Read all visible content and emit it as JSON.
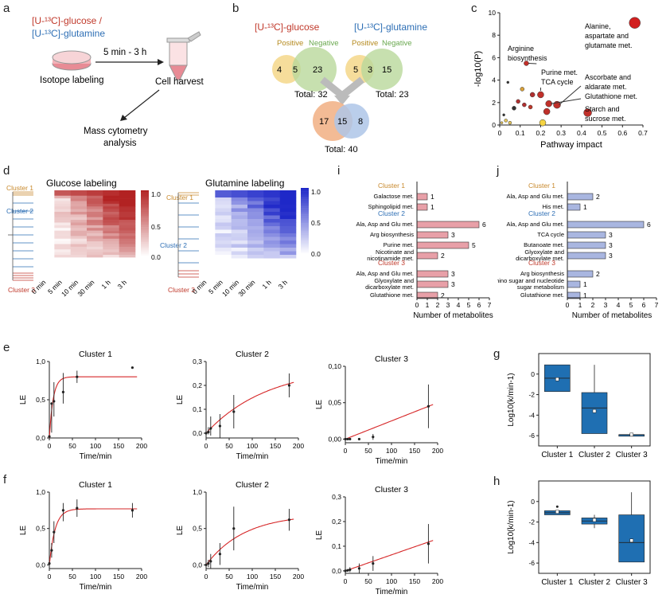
{
  "panel_labels": {
    "a": "a",
    "b": "b",
    "c": "c",
    "d": "d",
    "e": "e",
    "f": "f",
    "g": "g",
    "h": "h",
    "i": "i",
    "j": "j"
  },
  "colors": {
    "red": "#c0392b",
    "blue": "#2e6fb5",
    "orange": "#c8892c",
    "dark_red": "#b22222",
    "bar_red": "#e8a0a8",
    "bar_blue": "#a9b6e0",
    "box_blue": "#1f6fb2",
    "fit_red": "#d62728",
    "yellow": "#f5d76e",
    "green": "#b9d89b"
  },
  "panel_a": {
    "glucose_label": "[U-¹³C]-glucose /",
    "glutamine_label": "[U-¹³C]-glutamine",
    "time_label": "5 min - 3 h",
    "isotope_label": "Isotope labeling",
    "harvest_label": "Cell harvest",
    "cytometry_line1": "Mass cytometry",
    "cytometry_line2": "analysis"
  },
  "panel_b": {
    "glucose_title": "[U-¹³C]-glucose",
    "glutamine_title": "[U-¹³C]-glutamine",
    "positive": "Positive",
    "negative": "Negative",
    "glc_pos_only": "4",
    "glc_both": "5",
    "glc_neg_only": "23",
    "gln_pos_only": "5",
    "gln_both": "3",
    "gln_neg_only": "15",
    "total_glc": "Total: 32",
    "total_gln": "Total: 23",
    "union_glc_only": "17",
    "union_both": "15",
    "union_gln_only": "8",
    "total_union": "Total: 40"
  },
  "panel_d": {
    "glucose_title": "Glucose labeling",
    "glutamine_title": "Glutamine labeling",
    "cluster1": "Cluster 1",
    "cluster2": "Cluster 2",
    "cluster3": "Cluster 3",
    "time_ticks": [
      "0 min",
      "5 min",
      "10 min",
      "30 min",
      "1 h",
      "3 h"
    ],
    "colorbar_ticks": [
      "1.0",
      "0.5",
      "0.0"
    ]
  },
  "chart_data": [
    {
      "id": "c",
      "type": "scatter",
      "xlabel": "Pathway impact",
      "ylabel": "-log10(P)",
      "xlim": [
        0,
        0.7
      ],
      "ylim": [
        0,
        10
      ],
      "xticks": [
        "0",
        "0.1",
        "0.2",
        "0.3",
        "0.4",
        "0.5",
        "0.6",
        "0.7"
      ],
      "yticks": [
        "0",
        "2",
        "4",
        "6",
        "8",
        "10"
      ],
      "points": [
        {
          "x": 0.66,
          "y": 9.1,
          "size": 7,
          "color": "#d21f1f"
        },
        {
          "x": 0.13,
          "y": 5.5,
          "size": 3,
          "color": "#c0302a"
        },
        {
          "x": 0.2,
          "y": 2.7,
          "size": 4,
          "color": "#c0302a"
        },
        {
          "x": 0.28,
          "y": 1.8,
          "size": 4.5,
          "color": "#c0302a"
        },
        {
          "x": 0.24,
          "y": 1.9,
          "size": 4,
          "color": "#c0302a"
        },
        {
          "x": 0.23,
          "y": 1.2,
          "size": 4,
          "color": "#c0302a"
        },
        {
          "x": 0.43,
          "y": 1.1,
          "size": 5,
          "color": "#c0302a"
        },
        {
          "x": 0.11,
          "y": 3.2,
          "size": 2.5,
          "color": "#d9a13a"
        },
        {
          "x": 0.16,
          "y": 2.7,
          "size": 3,
          "color": "#b03030"
        },
        {
          "x": 0.09,
          "y": 2.1,
          "size": 2.5,
          "color": "#b03030"
        },
        {
          "x": 0.12,
          "y": 1.8,
          "size": 2.5,
          "color": "#b03030"
        },
        {
          "x": 0.15,
          "y": 1.6,
          "size": 2.5,
          "color": "#c0392b"
        },
        {
          "x": 0.04,
          "y": 3.8,
          "size": 1.5,
          "color": "#333333"
        },
        {
          "x": 0.07,
          "y": 1.5,
          "size": 2.5,
          "color": "#333333"
        },
        {
          "x": 0.02,
          "y": 0.9,
          "size": 1.5,
          "color": "#333333"
        },
        {
          "x": 0.03,
          "y": 0.4,
          "size": 2,
          "color": "#e8c85a"
        },
        {
          "x": 0.05,
          "y": 0.2,
          "size": 2,
          "color": "#e8c85a"
        },
        {
          "x": 0.01,
          "y": 0.2,
          "size": 1.5,
          "color": "#e8c85a"
        },
        {
          "x": 0.21,
          "y": 0.2,
          "size": 4,
          "color": "#f5d442"
        }
      ],
      "annotations": [
        "Alanine,",
        "aspartate and",
        "glutamate met.",
        "Arginine",
        "biosynthesis",
        "Purine met.",
        "TCA cycle",
        "Ascorbate and",
        "aldarate met.",
        "Glutathione met.",
        "Starch and",
        "sucrose met."
      ]
    },
    {
      "id": "i",
      "type": "bar",
      "xlabel": "Number of metabolites",
      "xlim": [
        0,
        7
      ],
      "xticks": [
        "0",
        "1",
        "2",
        "3",
        "4",
        "5",
        "6",
        "7"
      ],
      "groups": [
        {
          "label": "Cluster 1",
          "color": "#c8892c",
          "rows": [
            {
              "name": "Galactose met.",
              "value": 1
            },
            {
              "name": "Sphingolipid met.",
              "value": 1
            }
          ]
        },
        {
          "label": "Cluster 2",
          "color": "#2e6fb5",
          "rows": [
            {
              "name": "Ala, Asp and Glu met.",
              "value": 6
            },
            {
              "name": "Arg biosynthesis",
              "value": 3
            },
            {
              "name": "Purine met.",
              "value": 5
            },
            {
              "name": "Nicotinate and|nicotinamide met.",
              "value": 2
            }
          ]
        },
        {
          "label": "Cluster 3",
          "color": "#c0392b",
          "rows": [
            {
              "name": "Ala, Asp and Glu met.",
              "value": 3
            },
            {
              "name": "Glyoxylate and|dicarboxylate met.",
              "value": 3
            },
            {
              "name": "Glutathione met.",
              "value": 2
            }
          ]
        }
      ]
    },
    {
      "id": "j",
      "type": "bar",
      "xlabel": "Number of metabolites",
      "xlim": [
        0,
        7
      ],
      "xticks": [
        "0",
        "1",
        "2",
        "3",
        "4",
        "5",
        "6",
        "7"
      ],
      "groups": [
        {
          "label": "Cluster 1",
          "color": "#c8892c",
          "rows": [
            {
              "name": "Ala, Asp and Glu met.",
              "value": 2
            },
            {
              "name": "His met.",
              "value": 1
            }
          ]
        },
        {
          "label": "Cluster 2",
          "color": "#2e6fb5",
          "rows": [
            {
              "name": "Ala, Asp and Glu met.",
              "value": 6
            },
            {
              "name": "TCA cycle",
              "value": 3
            },
            {
              "name": "Butanoate met.",
              "value": 3
            },
            {
              "name": "Glyoxylate and|dicarboxylate met.",
              "value": 3
            }
          ]
        },
        {
          "label": "Cluster 3",
          "color": "#c0392b",
          "rows": [
            {
              "name": "Arg biosynthesis",
              "value": 2
            },
            {
              "name": "Amino sugar and nucleotide|sugar metabolism",
              "value": 1
            },
            {
              "name": "Glutathione met.",
              "value": 1
            }
          ]
        }
      ]
    },
    {
      "id": "e1",
      "type": "scatter",
      "title": "Cluster 1",
      "xlabel": "Time/min",
      "ylabel": "LE",
      "xlim": [
        0,
        200
      ],
      "ylim": [
        0,
        1
      ],
      "xticks": [
        "0",
        "50",
        "100",
        "150",
        "200"
      ],
      "yticks": [
        "0,0",
        "0,5",
        "1,0"
      ],
      "x": [
        0,
        5,
        10,
        30,
        60,
        180
      ],
      "y": [
        0.02,
        0.45,
        0.48,
        0.6,
        0.8,
        0.92
      ],
      "err": [
        [
          0,
          0
        ],
        [
          0.38,
          0.0
        ],
        [
          0.2,
          0.25
        ],
        [
          0.15,
          0.25
        ],
        [
          0.08,
          0.08
        ],
        [
          0,
          0
        ]
      ],
      "fit": {
        "kind": "exp",
        "a": 0.8,
        "k": 0.12
      }
    },
    {
      "id": "e2",
      "type": "scatter",
      "title": "Cluster 2",
      "xlabel": "Time/min",
      "ylabel": "LE",
      "xlim": [
        0,
        200
      ],
      "ylim": [
        -0.02,
        0.3
      ],
      "xticks": [
        "0",
        "50",
        "100",
        "150",
        "200"
      ],
      "yticks": [
        "0,0",
        "0,1",
        "0,2",
        "0,3"
      ],
      "yticks_val": [
        0,
        0.1,
        0.2,
        0.3
      ],
      "x": [
        0,
        5,
        10,
        30,
        60,
        180
      ],
      "y": [
        0,
        0.005,
        0.02,
        0.03,
        0.09,
        0.2
      ],
      "err": [
        [
          0,
          0
        ],
        [
          0.01,
          0.02
        ],
        [
          0.03,
          0.05
        ],
        [
          0.05,
          0.05
        ],
        [
          0.07,
          0.07
        ],
        [
          0.05,
          0.05
        ]
      ],
      "fit": {
        "kind": "exp",
        "a": 0.28,
        "k": 0.0075
      }
    },
    {
      "id": "e3",
      "type": "scatter",
      "title": "Cluster 3",
      "xlabel": "Time/min",
      "ylabel": "LE",
      "xlim": [
        0,
        200
      ],
      "ylim": [
        -0.005,
        0.1
      ],
      "xticks": [
        "0",
        "50",
        "100",
        "150",
        "200"
      ],
      "yticks": [
        "0,00",
        "0,05",
        "0,10"
      ],
      "yticks_val": [
        0,
        0.05,
        0.1
      ],
      "x": [
        0,
        5,
        10,
        30,
        60,
        180
      ],
      "y": [
        0,
        0,
        0,
        0,
        0.003,
        0.045
      ],
      "err": [
        [
          0,
          0
        ],
        [
          0,
          0
        ],
        [
          0,
          0
        ],
        [
          0,
          0
        ],
        [
          0.004,
          0.004
        ],
        [
          0.03,
          0.03
        ]
      ],
      "fit": {
        "kind": "line",
        "slope": 0.00025
      }
    },
    {
      "id": "f1",
      "type": "scatter",
      "title": "Cluster 1",
      "xlabel": "Time/min",
      "ylabel": "LE",
      "xlim": [
        0,
        200
      ],
      "ylim": [
        -0.05,
        1
      ],
      "xticks": [
        "0",
        "50",
        "100",
        "150",
        "200"
      ],
      "yticks": [
        "0,0",
        "0,5",
        "1,0"
      ],
      "yticks_val": [
        0,
        0.5,
        1
      ],
      "x": [
        0,
        5,
        10,
        30,
        60,
        180
      ],
      "y": [
        0.02,
        0.2,
        0.45,
        0.75,
        0.78,
        0.75
      ],
      "err": [
        [
          0.05,
          0.05
        ],
        [
          0.1,
          0.1
        ],
        [
          0.15,
          0.15
        ],
        [
          0.15,
          0.1
        ],
        [
          0.12,
          0.12
        ],
        [
          0.1,
          0.1
        ]
      ],
      "fit": {
        "kind": "exp",
        "a": 0.77,
        "k": 0.08
      }
    },
    {
      "id": "f2",
      "type": "scatter",
      "title": "Cluster 2",
      "xlabel": "Time/min",
      "ylabel": "LE",
      "xlim": [
        0,
        200
      ],
      "ylim": [
        -0.05,
        1
      ],
      "xticks": [
        "0",
        "50",
        "100",
        "150",
        "200"
      ],
      "yticks": [
        "0,0",
        "0,5",
        "1,0"
      ],
      "yticks_val": [
        0,
        0.5,
        1
      ],
      "x": [
        0,
        5,
        10,
        30,
        60,
        180
      ],
      "y": [
        0,
        0.02,
        0.05,
        0.15,
        0.5,
        0.62
      ],
      "err": [
        [
          0.02,
          0.02
        ],
        [
          0.05,
          0.05
        ],
        [
          0.1,
          0.1
        ],
        [
          0.15,
          0.15
        ],
        [
          0.3,
          0.3
        ],
        [
          0.15,
          0.15
        ]
      ],
      "fit": {
        "kind": "exp",
        "a": 0.7,
        "k": 0.012
      }
    },
    {
      "id": "f3",
      "type": "scatter",
      "title": "Cluster 3",
      "xlabel": "Time/min",
      "ylabel": "LE",
      "xlim": [
        0,
        200
      ],
      "ylim": [
        -0.01,
        0.3
      ],
      "xticks": [
        "0",
        "50",
        "100",
        "150",
        "200"
      ],
      "yticks": [
        "0,0",
        "0,1",
        "0,2",
        "0,3"
      ],
      "yticks_val": [
        0,
        0.1,
        0.2,
        0.3
      ],
      "x": [
        0,
        5,
        10,
        30,
        60,
        180
      ],
      "y": [
        0,
        0.002,
        0.005,
        0.01,
        0.03,
        0.11
      ],
      "err": [
        [
          0,
          0
        ],
        [
          0.005,
          0.005
        ],
        [
          0.01,
          0.01
        ],
        [
          0.02,
          0.02
        ],
        [
          0.03,
          0.03
        ],
        [
          0.08,
          0.08
        ]
      ],
      "fit": {
        "kind": "line",
        "slope": 0.00065
      }
    },
    {
      "id": "g",
      "type": "box",
      "ylabel": "Log10(k/min-1)",
      "ylim": [
        -7,
        2
      ],
      "yticks": [
        "0",
        "-2",
        "-4",
        "-6"
      ],
      "yticks_val": [
        0,
        -2,
        -4,
        -6
      ],
      "categories": [
        "Cluster 1",
        "Cluster 2",
        "Cluster 3"
      ],
      "boxes": [
        {
          "q1": -1.7,
          "median": -0.4,
          "q3": 0.9,
          "min": -1.7,
          "max": 0.9,
          "mean": -0.5
        },
        {
          "q1": -5.8,
          "median": -3.3,
          "q3": -1.8,
          "min": -5.8,
          "max": 0.9,
          "mean": -3.6
        },
        {
          "q1": -5.9,
          "median": -5.9,
          "q3": -5.9,
          "min": -5.9,
          "max": -5.9,
          "mean": -5.9
        }
      ]
    },
    {
      "id": "h",
      "type": "box",
      "ylabel": "Log10(k/min-1)",
      "ylim": [
        -7,
        2
      ],
      "yticks": [
        "0",
        "-2",
        "-4",
        "-6"
      ],
      "yticks_val": [
        0,
        -2,
        -4,
        -6
      ],
      "categories": [
        "Cluster 1",
        "Cluster 2",
        "Cluster 3"
      ],
      "boxes": [
        {
          "q1": -1.3,
          "median": -1.1,
          "q3": -0.9,
          "min": -1.3,
          "max": -0.9,
          "mean": -1.0,
          "outlier": -0.5
        },
        {
          "q1": -2.2,
          "median": -1.9,
          "q3": -1.6,
          "min": -2.6,
          "max": -1.3,
          "mean": -1.8
        },
        {
          "q1": -5.9,
          "median": -4.0,
          "q3": -1.3,
          "min": -5.9,
          "max": 0.9,
          "mean": -3.8
        }
      ]
    }
  ]
}
